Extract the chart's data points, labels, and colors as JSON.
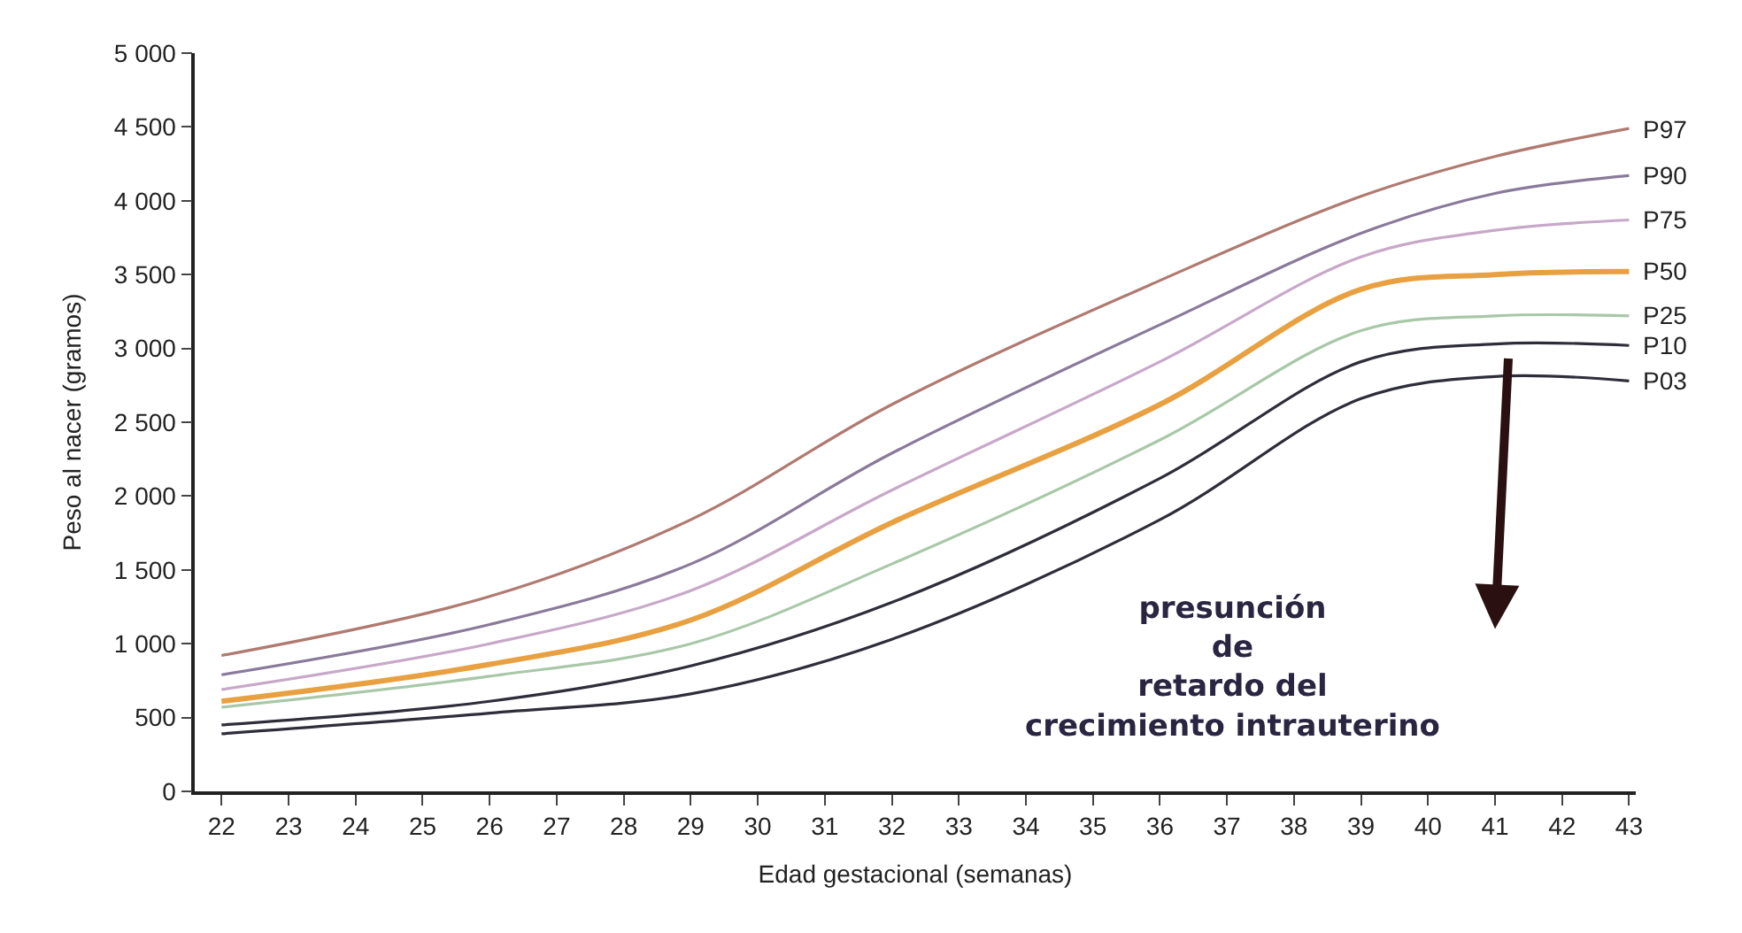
{
  "chart_data": {
    "type": "line",
    "xlabel": "Edad gestacional (semanas)",
    "ylabel": "Peso al nacer (gramos)",
    "x": [
      22,
      26,
      29,
      32,
      36,
      39,
      41,
      43
    ],
    "xlim": [
      21.6,
      43.1
    ],
    "xticks": [
      22,
      23,
      24,
      25,
      26,
      27,
      28,
      29,
      30,
      31,
      32,
      33,
      34,
      35,
      36,
      37,
      38,
      39,
      40,
      41,
      42,
      43
    ],
    "ylim": [
      0,
      5000
    ],
    "yticks": [
      0,
      500,
      {
        "value": 1000,
        "label": "1 000"
      },
      {
        "value": 1500,
        "label": "1 500"
      },
      {
        "value": 2000,
        "label": "2 000"
      },
      {
        "value": 2500,
        "label": "2 500"
      },
      {
        "value": 3000,
        "label": "3 000"
      },
      {
        "value": 3500,
        "label": "3 500"
      },
      {
        "value": 4000,
        "label": "4 000"
      },
      {
        "value": 4500,
        "label": "4 500"
      },
      {
        "value": 5000,
        "label": "5 000"
      }
    ],
    "series": [
      {
        "name": "P97",
        "color": "#b07a70",
        "values": [
          920,
          1320,
          1840,
          2620,
          3460,
          4030,
          4300,
          4490
        ]
      },
      {
        "name": "P90",
        "color": "#8a7a9a",
        "values": [
          790,
          1130,
          1540,
          2290,
          3160,
          3780,
          4050,
          4170
        ]
      },
      {
        "name": "P75",
        "color": "#c8a8c8",
        "values": [
          690,
          1000,
          1360,
          2040,
          2910,
          3620,
          3800,
          3870
        ]
      },
      {
        "name": "P50",
        "color": "#e8a040",
        "values": [
          610,
          860,
          1160,
          1820,
          2620,
          3400,
          3500,
          3520
        ]
      },
      {
        "name": "P25",
        "color": "#a8c8a8",
        "values": [
          570,
          780,
          1000,
          1540,
          2380,
          3120,
          3220,
          3220
        ]
      },
      {
        "name": "P10",
        "color": "#2e2e3a",
        "values": [
          450,
          610,
          850,
          1280,
          2120,
          2910,
          3030,
          3020
        ]
      },
      {
        "name": "P03",
        "color": "#2e2e3a",
        "values": [
          390,
          530,
          660,
          1030,
          1840,
          2660,
          2810,
          2780
        ]
      }
    ],
    "annotations": [
      "presunción\nde\nretardo del\ncrecimiento intrauterino"
    ],
    "legend": false,
    "marker": "none",
    "line_style": "solid"
  }
}
